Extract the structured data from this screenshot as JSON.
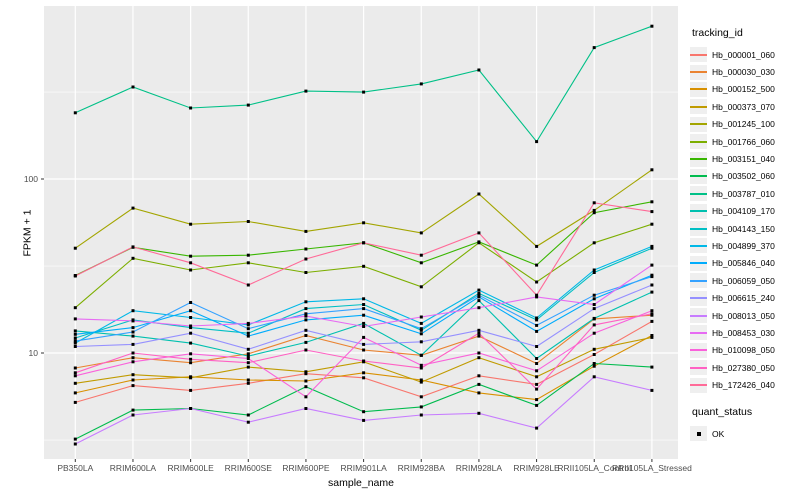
{
  "figure": {
    "panel_bg": "#EBEBEB",
    "grid_color": "#FFFFFF",
    "tick_color": "#333333",
    "tick_label_color": "#4D4D4D",
    "point_color": "#000000"
  },
  "chart_data": {
    "type": "line",
    "title": "",
    "xlabel": "sample_name",
    "ylabel": "FPKM + 1",
    "y_scale": "log10",
    "ylim": [
      2.46,
      987
    ],
    "y_ticks": [
      100,
      10
    ],
    "y_tick_labels": [
      "100",
      "10"
    ],
    "y_minor_gridlines": [
      3.16,
      31.6,
      316
    ],
    "grid": true,
    "legend_position": "right",
    "legend_title": "tracking_id",
    "categories": [
      "PB350LA",
      "RRIM600LA",
      "RRIM600LE",
      "RRIM600SE",
      "RRIM600PE",
      "RRIM901LA",
      "RRIM928BA",
      "RRIM928LA",
      "RRIM928LE",
      "RRII105LA_Control",
      "RRII105LA_Stressed"
    ],
    "points": {
      "shape": "square",
      "color": "#000000",
      "legend": "OK"
    },
    "quant_legend": {
      "title": "quant_status",
      "items": [
        "OK"
      ]
    },
    "series": [
      {
        "name": "Hb_000001_060",
        "color": "#F8766D",
        "values": [
          5.2,
          6.5,
          6.1,
          6.7,
          7.6,
          7.2,
          5.6,
          7.4,
          6.6,
          9.8,
          15.2
        ]
      },
      {
        "name": "Hb_000030_030",
        "color": "#EA8331",
        "values": [
          8.2,
          9.4,
          8.8,
          9.9,
          12.6,
          10.4,
          9.7,
          12.5,
          8.7,
          15.7,
          16.5
        ]
      },
      {
        "name": "Hb_000152_500",
        "color": "#D89000",
        "values": [
          5.9,
          7.0,
          7.3,
          7.0,
          6.9,
          7.7,
          7.0,
          5.9,
          5.4,
          8.4,
          12.6
        ]
      },
      {
        "name": "Hb_000373_070",
        "color": "#C09B00",
        "values": [
          6.7,
          7.5,
          7.2,
          8.3,
          7.8,
          8.9,
          6.8,
          9.4,
          7.3,
          10.5,
          12.3
        ]
      },
      {
        "name": "Hb_001245_100",
        "color": "#A3A500",
        "values": [
          40,
          68,
          55,
          57,
          50,
          56,
          49,
          82,
          41,
          66,
          113
        ]
      },
      {
        "name": "Hb_001766_060",
        "color": "#7CAE00",
        "values": [
          18.2,
          35,
          30,
          33,
          29,
          31.5,
          24,
          43,
          25.6,
          43,
          55
        ]
      },
      {
        "name": "Hb_003151_040",
        "color": "#39B600",
        "values": [
          27.9,
          40.5,
          36,
          36.5,
          39.6,
          43,
          33,
          43.5,
          32,
          64,
          74
        ]
      },
      {
        "name": "Hb_003502_060",
        "color": "#00BB4E",
        "values": [
          3.2,
          4.7,
          4.8,
          4.4,
          6.4,
          4.6,
          4.9,
          6.6,
          5.0,
          8.7,
          8.3
        ]
      },
      {
        "name": "Hb_003787_010",
        "color": "#00C087",
        "values": [
          240,
          338,
          256,
          266,
          320,
          316,
          352,
          423,
          164,
          569,
          755
        ]
      },
      {
        "name": "Hb_004109_170",
        "color": "#00C0AF",
        "values": [
          13.4,
          12.5,
          11.4,
          9.6,
          11.5,
          14.8,
          9.7,
          20,
          9.3,
          15.8,
          22.4
        ]
      },
      {
        "name": "Hb_004143_150",
        "color": "#00BFC4",
        "values": [
          12.2,
          15.5,
          14,
          13,
          18,
          19,
          13.5,
          22,
          15.5,
          29,
          40
        ]
      },
      {
        "name": "Hb_004899_370",
        "color": "#00B8E7",
        "values": [
          11.4,
          17.5,
          16,
          14.5,
          19.7,
          20.5,
          14.8,
          23,
          15.9,
          30,
          41
        ]
      },
      {
        "name": "Hb_005846_040",
        "color": "#00ACFC",
        "values": [
          12.8,
          14,
          17.5,
          12.5,
          15.5,
          16.5,
          12.9,
          21,
          13.3,
          20.5,
          28
        ]
      },
      {
        "name": "Hb_006059_050",
        "color": "#35A2FF",
        "values": [
          11.7,
          13.2,
          19.5,
          13.8,
          16.8,
          18,
          13.8,
          21.5,
          14.4,
          21.5,
          27.5
        ]
      },
      {
        "name": "Hb_006615_240",
        "color": "#9590FF",
        "values": [
          10.9,
          11.2,
          13,
          10.5,
          13.5,
          11.2,
          11.6,
          13.5,
          10.9,
          18,
          24.6
        ]
      },
      {
        "name": "Hb_008013_050",
        "color": "#C77CFF",
        "values": [
          3.0,
          4.4,
          4.8,
          4.0,
          4.8,
          4.1,
          4.4,
          4.5,
          3.7,
          7.3,
          6.1
        ]
      },
      {
        "name": "Hb_008453_030",
        "color": "#E76BF3",
        "values": [
          15.7,
          15.3,
          14.3,
          14.8,
          16.3,
          14.2,
          16.1,
          18.2,
          21,
          19,
          32
        ]
      },
      {
        "name": "Hb_010098_050",
        "color": "#FA62DB",
        "values": [
          7.4,
          8.9,
          9.9,
          9.3,
          5.6,
          12.3,
          8.5,
          10,
          7.9,
          13,
          17.5
        ]
      },
      {
        "name": "Hb_027380_050",
        "color": "#FF61C3",
        "values": [
          7.7,
          10,
          9.2,
          8.8,
          10.4,
          9.0,
          8.2,
          13,
          6.2,
          14.5,
          16.8
        ]
      },
      {
        "name": "Hb_172426_040",
        "color": "#FF6A98",
        "values": [
          27.7,
          40.7,
          33,
          24.6,
          34.7,
          43,
          36.5,
          49,
          21.5,
          73,
          65
        ]
      }
    ]
  }
}
